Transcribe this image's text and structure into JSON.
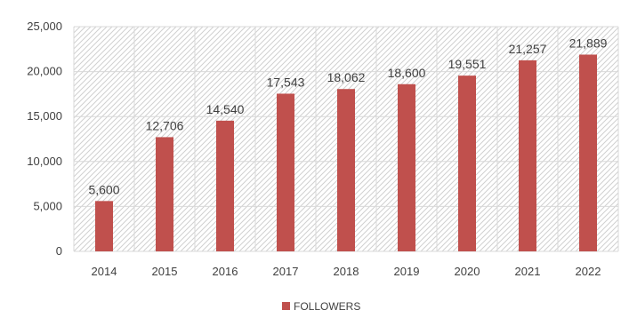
{
  "chart_data": {
    "type": "bar",
    "categories": [
      "2014",
      "2015",
      "2016",
      "2017",
      "2018",
      "2019",
      "2020",
      "2021",
      "2022"
    ],
    "series": [
      {
        "name": "FOLLOWERS",
        "values": [
          5600,
          12706,
          14540,
          17543,
          18062,
          18600,
          19551,
          21257,
          21889
        ],
        "value_labels": [
          "5,600",
          "12,706",
          "14,540",
          "17,543",
          "18,062",
          "18,600",
          "19,551",
          "21,257",
          "21,889"
        ],
        "color": "#c0504d"
      }
    ],
    "ylim": [
      0,
      25000
    ],
    "yticks": [
      0,
      5000,
      10000,
      15000,
      20000,
      25000
    ],
    "ytick_labels": [
      "0",
      "5,000",
      "10,000",
      "15,000",
      "20,000",
      "25,000"
    ],
    "grid": true,
    "plot_background": "diagonal-hatch",
    "legend": {
      "position": "bottom",
      "label": "FOLLOWERS"
    }
  }
}
